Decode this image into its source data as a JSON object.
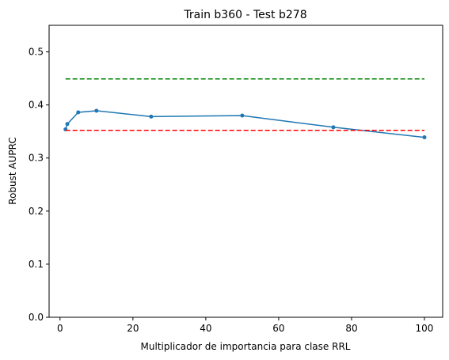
{
  "chart_data": {
    "type": "line",
    "title": "Train b360 - Test b278",
    "xlabel": "Multiplicador de importancia para clase RRL",
    "ylabel": "Robust AUPRC",
    "xlim": [
      -3,
      105
    ],
    "ylim": [
      0,
      0.55
    ],
    "xticks": [
      0,
      20,
      40,
      60,
      80,
      100
    ],
    "xtick_labels": [
      "0",
      "20",
      "40",
      "60",
      "80",
      "100"
    ],
    "yticks": [
      0.0,
      0.1,
      0.2,
      0.3,
      0.4,
      0.5
    ],
    "ytick_labels": [
      "0.0",
      "0.1",
      "0.2",
      "0.3",
      "0.4",
      "0.5"
    ],
    "grid": false,
    "series": [
      {
        "color": "#1f77b4",
        "style": "solid",
        "marker": "dot",
        "x": [
          1.5,
          2,
          5,
          10,
          25,
          50,
          75,
          100
        ],
        "y": [
          0.354,
          0.364,
          0.386,
          0.389,
          0.378,
          0.38,
          0.358,
          0.339
        ]
      },
      {
        "color": "#008000",
        "style": "dashed",
        "marker": "none",
        "x": [
          1.5,
          100
        ],
        "y": [
          0.449,
          0.449
        ]
      },
      {
        "color": "#ff0000",
        "style": "dashed",
        "marker": "none",
        "x": [
          1.5,
          100
        ],
        "y": [
          0.352,
          0.352
        ]
      }
    ]
  }
}
